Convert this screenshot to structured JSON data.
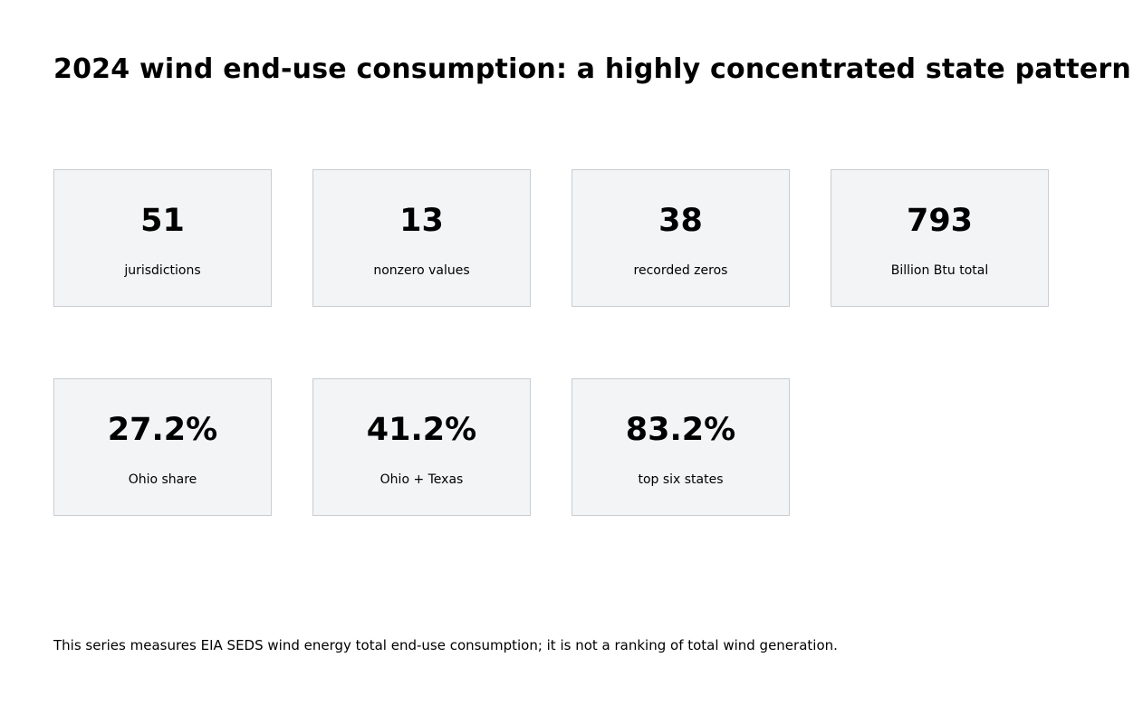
{
  "title": "2024 wind end-use consumption: a highly concentrated state pattern",
  "chart_data": {
    "type": "table",
    "title": "2024 wind end-use consumption: a highly concentrated state pattern",
    "cards": [
      {
        "value": "51",
        "label": "jurisdictions"
      },
      {
        "value": "13",
        "label": "nonzero values"
      },
      {
        "value": "38",
        "label": "recorded zeros"
      },
      {
        "value": "793",
        "label": "Billion Btu total"
      },
      {
        "value": "27.2%",
        "label": "Ohio share"
      },
      {
        "value": "41.2%",
        "label": "Ohio + Texas"
      },
      {
        "value": "83.2%",
        "label": "top six states"
      }
    ]
  },
  "footnote": "This series measures EIA SEDS wind energy total end-use consumption; it is not a ranking of total wind generation."
}
